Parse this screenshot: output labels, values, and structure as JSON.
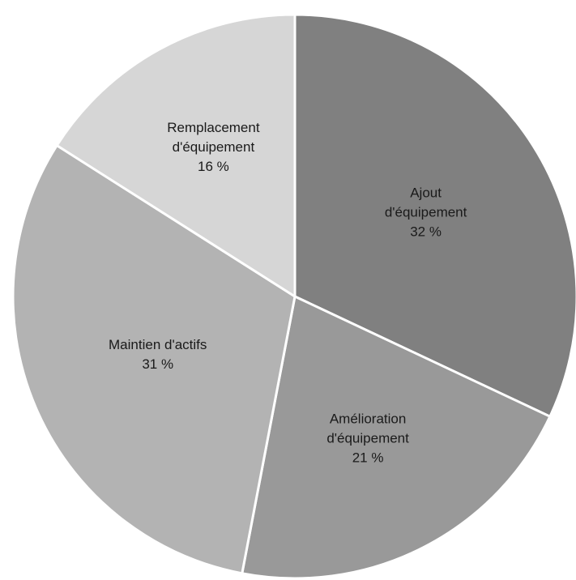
{
  "chart_data": {
    "type": "pie",
    "title": "",
    "start_angle_deg": 0,
    "direction": "clockwise",
    "legend": "none",
    "slices": [
      {
        "name": "Ajout d'équipement",
        "label_lines": [
          "Ajout",
          "d'équipement"
        ],
        "value_label": "32 %",
        "value": 32,
        "color": "#808080"
      },
      {
        "name": "Amélioration d'équipement",
        "label_lines": [
          "Amélioration",
          "d'équipement"
        ],
        "value_label": "21 %",
        "value": 21,
        "color": "#999999"
      },
      {
        "name": "Maintien d'actifs",
        "label_lines": [
          "Maintien d'actifs"
        ],
        "value_label": "31 %",
        "value": 31,
        "color": "#b3b3b3"
      },
      {
        "name": "Remplacement d'équipement",
        "label_lines": [
          "Remplacement",
          "d'équipement"
        ],
        "value_label": "16 %",
        "value": 16,
        "color": "#d6d6d6"
      }
    ]
  }
}
